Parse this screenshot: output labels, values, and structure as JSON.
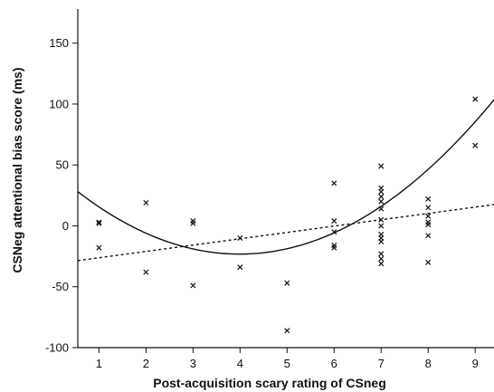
{
  "chart_data": {
    "type": "scatter",
    "xlabel": "Post-acquisition scary rating of CSneg",
    "ylabel": "CSNeg attentional bias score (ms)",
    "xlim": [
      0.55,
      9.4
    ],
    "ylim": [
      -100,
      178
    ],
    "x_ticks": [
      1,
      2,
      3,
      4,
      5,
      6,
      7,
      8,
      9
    ],
    "y_ticks": [
      -100,
      -50,
      0,
      50,
      100,
      150
    ],
    "marker": "x",
    "grid": false,
    "color": "#111111",
    "points": [
      {
        "x": 1,
        "y": 3
      },
      {
        "x": 1,
        "y": 2
      },
      {
        "x": 1,
        "y": -18
      },
      {
        "x": 2,
        "y": 19
      },
      {
        "x": 2,
        "y": -38
      },
      {
        "x": 3,
        "y": 4
      },
      {
        "x": 3,
        "y": 2
      },
      {
        "x": 3,
        "y": -49
      },
      {
        "x": 4,
        "y": -10
      },
      {
        "x": 4,
        "y": -34
      },
      {
        "x": 5,
        "y": -47
      },
      {
        "x": 5,
        "y": -86
      },
      {
        "x": 6,
        "y": 35
      },
      {
        "x": 6,
        "y": 4
      },
      {
        "x": 6,
        "y": -5
      },
      {
        "x": 6,
        "y": -16
      },
      {
        "x": 6,
        "y": -18
      },
      {
        "x": 7,
        "y": 49
      },
      {
        "x": 7,
        "y": 31
      },
      {
        "x": 7,
        "y": 28
      },
      {
        "x": 7,
        "y": 24
      },
      {
        "x": 7,
        "y": 20
      },
      {
        "x": 7,
        "y": 14
      },
      {
        "x": 7,
        "y": 5
      },
      {
        "x": 7,
        "y": 0
      },
      {
        "x": 7,
        "y": -7
      },
      {
        "x": 7,
        "y": -10
      },
      {
        "x": 7,
        "y": -13
      },
      {
        "x": 7,
        "y": -23
      },
      {
        "x": 7,
        "y": -27
      },
      {
        "x": 7,
        "y": -31
      },
      {
        "x": 8,
        "y": 22
      },
      {
        "x": 8,
        "y": 15
      },
      {
        "x": 8,
        "y": 8
      },
      {
        "x": 8,
        "y": 3
      },
      {
        "x": 8,
        "y": 1
      },
      {
        "x": 8,
        "y": -8
      },
      {
        "x": 8,
        "y": -30
      },
      {
        "x": 9,
        "y": 104
      },
      {
        "x": 9,
        "y": 66
      }
    ],
    "fit_lines": [
      {
        "kind": "quadratic",
        "style": "solid",
        "coefficients": [
          45.76,
          -34.56,
          4.33
        ]
      },
      {
        "kind": "linear",
        "style": "dotted",
        "coefficients": [
          -31.4,
          5.2
        ]
      }
    ]
  }
}
